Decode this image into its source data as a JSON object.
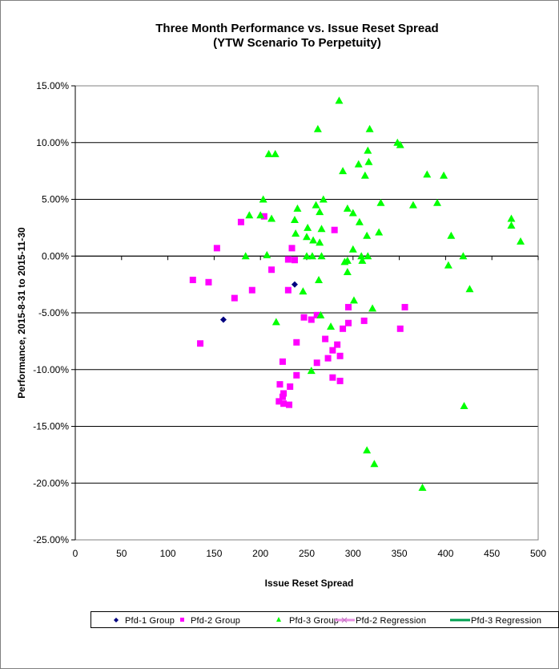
{
  "chart_data": {
    "type": "scatter",
    "title": "Three Month Performance vs. Issue Reset Spread",
    "subtitle": "(YTW Scenario To Perpetuity)",
    "xlabel": "Issue Reset Spread",
    "ylabel": "Performance, 2015-8-31  to 2015-11-30",
    "xlim": [
      0,
      500
    ],
    "ylim": [
      -25,
      15
    ],
    "xticks": [
      "0",
      "50",
      "100",
      "150",
      "200",
      "250",
      "300",
      "350",
      "400",
      "450",
      "500"
    ],
    "yticks": [
      "15.00%",
      "10.00%",
      "5.00%",
      "0.00%",
      "-5.00%",
      "-10.00%",
      "-15.00%",
      "-20.00%",
      "-25.00%"
    ],
    "grid": "horizontal",
    "legend_position": "bottom",
    "colors": {
      "pfd1": "#000080",
      "pfd2": "#ff00ff",
      "pfd3": "#00ff00",
      "reg2": "#e58fe0",
      "reg3": "#00a050"
    },
    "legend": [
      "Pfd-1 Group",
      "Pfd-2 Group",
      "Pfd-3 Group",
      "Pfd-2 Regression",
      "Pfd-3 Regression"
    ],
    "series": [
      {
        "name": "Pfd-1 Group",
        "marker": "diamond",
        "x": [
          160,
          237
        ],
        "y": [
          -5.6,
          -2.5
        ]
      },
      {
        "name": "Pfd-2 Group",
        "marker": "square",
        "x": [
          204,
          179,
          153,
          234,
          230,
          237,
          212,
          127,
          144,
          191,
          172,
          230,
          135,
          239,
          224,
          239,
          221,
          232,
          225,
          224,
          220,
          225,
          231,
          280,
          295,
          356,
          247,
          255,
          261,
          295,
          289,
          312,
          351,
          270,
          283,
          278,
          286,
          273,
          261,
          278,
          286
        ],
        "y": [
          3.5,
          3.0,
          0.7,
          0.7,
          -0.3,
          -0.35,
          -1.2,
          -2.1,
          -2.3,
          -3.0,
          -3.7,
          -3.0,
          -7.7,
          -7.6,
          -9.3,
          -10.5,
          -11.3,
          -11.5,
          -12.1,
          -12.4,
          -12.8,
          -13.0,
          -13.1,
          2.3,
          -4.5,
          -4.5,
          -5.4,
          -5.6,
          -5.2,
          -5.9,
          -6.4,
          -5.7,
          -6.4,
          -7.3,
          -7.8,
          -8.3,
          -8.8,
          -9.0,
          -9.4,
          -10.7,
          -11.0
        ]
      },
      {
        "name": "Pfd-3 Group",
        "marker": "triangle",
        "x": [
          209,
          216,
          203,
          188,
          200,
          212,
          240,
          237,
          238,
          184,
          207,
          285,
          262,
          318,
          348,
          351,
          316,
          306,
          317,
          289,
          313,
          380,
          398,
          268,
          260,
          264,
          294,
          300,
          330,
          365,
          391,
          307,
          251,
          266,
          471,
          471,
          315,
          328,
          406,
          481,
          250,
          257,
          264,
          300,
          250,
          256,
          266,
          309,
          316,
          419,
          403,
          291,
          294,
          310,
          294,
          246,
          217,
          263,
          426,
          301,
          321,
          265,
          276,
          255,
          420,
          315,
          323,
          375
        ],
        "y": [
          9.0,
          9.0,
          5.0,
          3.6,
          3.6,
          3.3,
          4.2,
          3.2,
          2.0,
          0.0,
          0.1,
          13.7,
          11.2,
          11.2,
          10.0,
          9.8,
          9.3,
          8.1,
          8.3,
          7.5,
          7.1,
          7.2,
          7.1,
          5.0,
          4.5,
          3.9,
          4.2,
          3.8,
          4.7,
          4.5,
          4.7,
          3.0,
          2.5,
          2.4,
          3.3,
          2.7,
          1.8,
          2.1,
          1.8,
          1.3,
          1.7,
          1.4,
          1.2,
          0.6,
          0.0,
          0.0,
          0.0,
          0.0,
          0.0,
          0.0,
          -0.8,
          -0.5,
          -0.4,
          -0.4,
          -1.4,
          -3.1,
          -5.8,
          -2.1,
          -2.9,
          -3.9,
          -4.6,
          -5.2,
          -6.2,
          -10.1,
          -13.2,
          -17.1,
          -18.3,
          -20.4
        ]
      },
      {
        "name": "Pfd-2 Regression",
        "marker": "line-x",
        "x": [],
        "y": []
      },
      {
        "name": "Pfd-3 Regression",
        "marker": "line",
        "x": [],
        "y": []
      }
    ]
  }
}
